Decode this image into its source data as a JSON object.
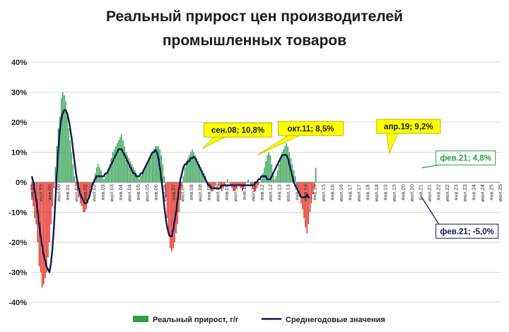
{
  "chart_data": {
    "type": "bar+line",
    "title_line1": "Реальный прирост цен производителей",
    "title_line2": "промышленных товаров",
    "ylim": [
      -40,
      40
    ],
    "y_ticks": [
      "40%",
      "30%",
      "20%",
      "10%",
      "0%",
      "-10%",
      "-20%",
      "-30%",
      "-40%"
    ],
    "x_tick_labels": [
      "янв.99",
      "июл.99",
      "янв.00",
      "июл.00",
      "янв.01",
      "июл.01",
      "янв.02",
      "июл.02",
      "янв.03",
      "июл.03",
      "янв.04",
      "июл.04",
      "янв.05",
      "июл.05",
      "янв.06",
      "июл.06",
      "янв.07",
      "июл.07",
      "янв.08",
      "июл.08",
      "янв.09",
      "июл.09",
      "янв.10",
      "июл.10",
      "янв.11",
      "июл.11",
      "янв.12",
      "июл.12",
      "янв.13",
      "июл.13",
      "янв.14",
      "июл.14",
      "янв.15",
      "июл.15",
      "янв.16",
      "июл.16",
      "янв.17",
      "июл.17",
      "янв.18",
      "июл.18",
      "янв.19",
      "июл.19",
      "янв.20",
      "июл.20",
      "янв.21",
      "июл.21",
      "янв.22",
      "июл.22",
      "янв.23",
      "июл.23",
      "янв.24",
      "июл.24",
      "янв.25",
      "июл.25"
    ],
    "grid": true,
    "legend_placement": "bottom",
    "colors": {
      "positive_bar": "#2e9e4e",
      "negative_bar": "#e3231a",
      "line": "#0e1a4f",
      "callout_fill": "#ffff00"
    },
    "series": [
      {
        "name": "Реальный прирост, г/г",
        "kind": "bar",
        "start": "1999-01",
        "values": [
          -5,
          -8,
          -12,
          -14,
          -20,
          -28,
          -30,
          -35,
          -34,
          -32,
          -30,
          -25,
          -20,
          -14,
          -8,
          -2,
          5,
          12,
          18,
          22,
          28,
          30,
          29,
          27,
          22,
          18,
          14,
          10,
          6,
          2,
          -1,
          -3,
          -5,
          -7,
          -8,
          -10,
          -10,
          -9,
          -7,
          -5,
          -3,
          -1,
          1,
          3,
          5,
          6,
          5,
          4,
          2,
          1,
          2,
          3,
          4,
          6,
          8,
          10,
          11,
          12,
          13,
          14,
          15,
          16,
          14,
          12,
          10,
          9,
          8,
          7,
          6,
          5,
          4,
          3,
          2,
          1,
          2,
          3,
          4,
          5,
          6,
          7,
          8,
          9,
          10,
          11,
          12,
          12,
          12,
          11,
          9,
          6,
          2,
          -5,
          -12,
          -18,
          -22,
          -23,
          -22,
          -20,
          -17,
          -14,
          -10,
          -6,
          -2,
          2,
          5,
          7,
          8,
          9,
          10,
          11,
          10,
          9,
          8,
          7,
          6,
          5,
          4,
          3,
          2,
          0,
          -1,
          -2,
          -3,
          -3,
          -2,
          -1,
          0,
          -1,
          -2,
          -3,
          -2,
          -1,
          0,
          1,
          0,
          -1,
          -2,
          -3,
          -3,
          -2,
          -1,
          -1,
          -2,
          -3,
          -2,
          -1,
          0,
          1,
          0,
          -1,
          -2,
          -3,
          -3,
          -2,
          -1,
          0,
          1,
          3,
          5,
          7,
          9,
          10,
          9,
          6,
          3,
          1,
          2,
          4,
          6,
          8,
          10,
          11,
          12,
          13,
          12,
          10,
          8,
          6,
          4,
          2,
          -1,
          -3,
          -5,
          -7,
          -9,
          -12,
          -15,
          -17,
          -14,
          -10,
          -7,
          -4,
          -2,
          4.8
        ]
      },
      {
        "name": "Среднегодовые значения",
        "kind": "line",
        "start": "1999-01",
        "values": [
          2,
          0,
          -3,
          -6,
          -10,
          -14,
          -18,
          -21,
          -24,
          -26,
          -28,
          -29,
          -30,
          -27,
          -22,
          -15,
          -6,
          3,
          11,
          17,
          21,
          23,
          24,
          24,
          23,
          21,
          18,
          15,
          11,
          7,
          3,
          0,
          -2,
          -4,
          -5,
          -6,
          -7,
          -7,
          -6,
          -5,
          -3,
          -1,
          0,
          1,
          2,
          2,
          2,
          2,
          2,
          2,
          3,
          3,
          4,
          5,
          6,
          7,
          8,
          9,
          10,
          11,
          11,
          11,
          10,
          9,
          8,
          7,
          6,
          5,
          4,
          3,
          3,
          2,
          2,
          2,
          3,
          3,
          4,
          5,
          6,
          7,
          8,
          9,
          10,
          10,
          10.8,
          10,
          8,
          5,
          1,
          -3,
          -8,
          -12,
          -15,
          -17,
          -18,
          -18,
          -16,
          -13,
          -10,
          -6,
          -2,
          1,
          3,
          5,
          6,
          6,
          7,
          7,
          8,
          8,
          8.5,
          8,
          7,
          6,
          5,
          4,
          3,
          2,
          1,
          0,
          -1,
          -1,
          -2,
          -2,
          -2,
          -2,
          -2,
          -2,
          -2,
          -1,
          -1,
          -1,
          -1,
          -1,
          -1,
          -1,
          -1,
          -1,
          -1,
          -1,
          -1,
          -1,
          -1,
          -1,
          -1,
          -1,
          -1,
          -1,
          -1,
          -1,
          -1,
          -1,
          0,
          0,
          1,
          1,
          2,
          2,
          2,
          2,
          1,
          1,
          1,
          2,
          3,
          4,
          5,
          6,
          7,
          8,
          9,
          9,
          9.2,
          9,
          8,
          6,
          4,
          2,
          0,
          -1,
          -2,
          -3,
          -4,
          -5,
          -5,
          -5,
          -5,
          -4,
          -5,
          -5
        ]
      }
    ],
    "annotations": [
      {
        "text": "сен.08; 10,8%",
        "date": "2008-09",
        "y": 10.8
      },
      {
        "text": "окт.11; 8,5%",
        "date": "2011-10",
        "y": 8.5
      },
      {
        "text": "апр.19; 9,2%",
        "date": "2019-04",
        "y": 9.2
      },
      {
        "text": "фев.21; 4,8%",
        "date": "2021-02",
        "y": 4.8
      },
      {
        "text": "фев.21; -5,0%",
        "date": "2021-02",
        "y": -5.0
      }
    ]
  }
}
